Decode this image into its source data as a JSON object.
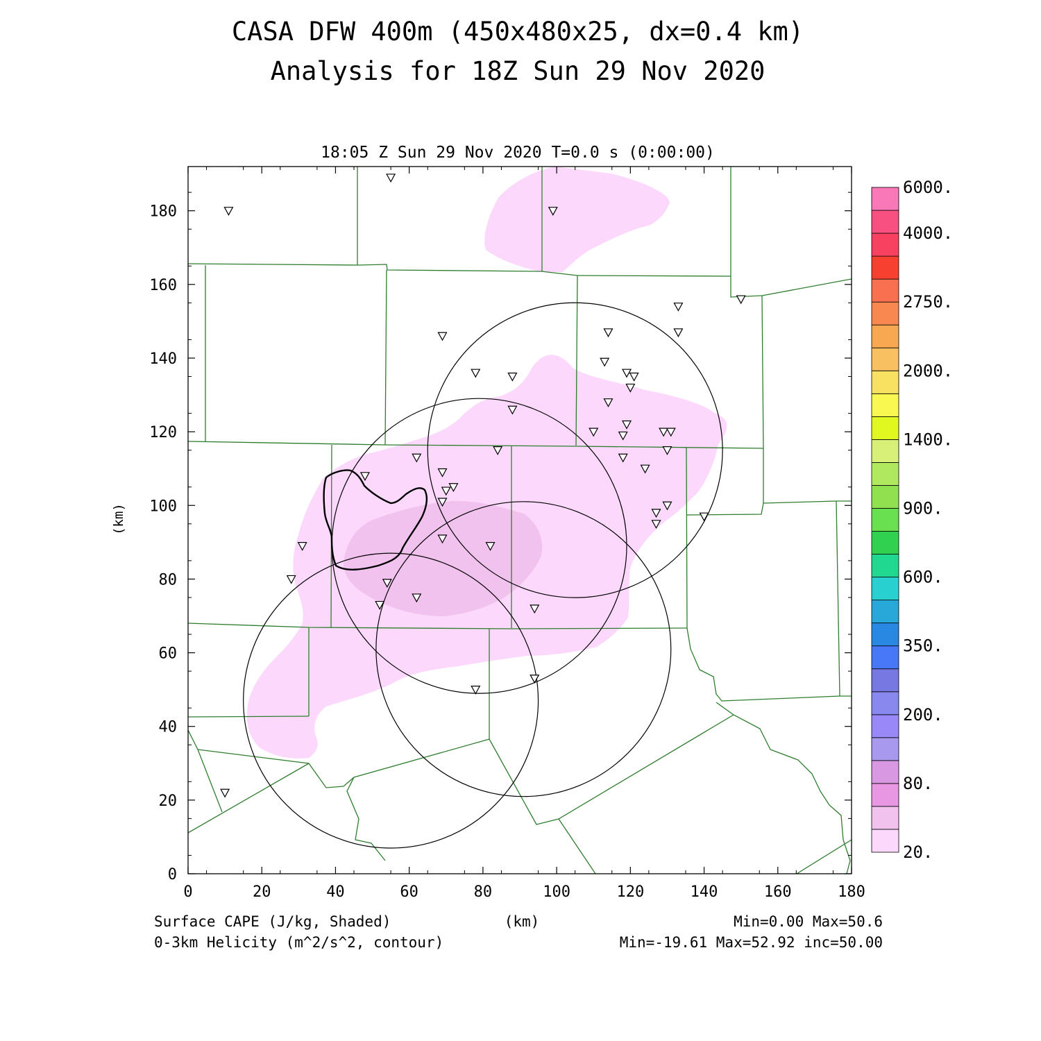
{
  "title": {
    "line1": "CASA DFW 400m (450x480x25, dx=0.4 km)",
    "line2": "Analysis for 18Z Sun 29 Nov 2020"
  },
  "subtitle": "18:05 Z Sun 29 Nov 2020   T=0.0 s (0:00:00)",
  "axes": {
    "x_label": "(km)",
    "y_label": "(km)",
    "x_range": [
      0,
      180
    ],
    "y_range": [
      0,
      192
    ],
    "x_ticks": [
      "0",
      "20",
      "40",
      "60",
      "80",
      "100",
      "120",
      "140",
      "160",
      "180"
    ],
    "y_ticks": [
      "0",
      "20",
      "40",
      "60",
      "80",
      "100",
      "120",
      "140",
      "160",
      "180"
    ]
  },
  "footer": {
    "left1": "Surface CAPE (J/kg, Shaded)",
    "left2": "0-3km Helicity (m^2/s^2, contour)",
    "center": "(km)",
    "right1": "Min=0.00 Max=50.6",
    "right2": "Min=-19.61 Max=52.92 inc=50.00"
  },
  "colorbar": {
    "colors": [
      "#fcd9fc",
      "#f2c2ef",
      "#e898e2",
      "#d898e2",
      "#a898ee",
      "#9888f8",
      "#8888ee",
      "#7878e2",
      "#4878f8",
      "#2888e2",
      "#28a8d8",
      "#28d0d0",
      "#20d890",
      "#30d050",
      "#68e050",
      "#90e050",
      "#b0e860",
      "#d8f078",
      "#e0f820",
      "#f8f850",
      "#f8e060",
      "#f8c060",
      "#f8a850",
      "#f88850",
      "#f87050",
      "#f84030",
      "#f84060",
      "#f85080",
      "#f878b8"
    ],
    "labels": [
      {
        "text": "20.",
        "index": 0
      },
      {
        "text": "80.",
        "index": 3
      },
      {
        "text": "200.",
        "index": 6
      },
      {
        "text": "350.",
        "index": 9
      },
      {
        "text": "600.",
        "index": 12
      },
      {
        "text": "900.",
        "index": 15
      },
      {
        "text": "1400.",
        "index": 18
      },
      {
        "text": "2000.",
        "index": 21
      },
      {
        "text": "2750.",
        "index": 24
      },
      {
        "text": "4000.",
        "index": 27
      },
      {
        "text": "6000.",
        "index": 29
      }
    ]
  },
  "map_colors": {
    "cape_light": "#fcd9fc",
    "cape_medium": "#f1c2ee",
    "county_lines": "#2e7d2e",
    "helicity_contour": "#000000"
  },
  "radar_rings": [
    {
      "center_km": [
        79,
        89
      ],
      "radius_km": 40
    },
    {
      "center_km": [
        105,
        115
      ],
      "radius_km": 40
    },
    {
      "center_km": [
        91,
        61
      ],
      "radius_km": 40
    },
    {
      "center_km": [
        55,
        47
      ],
      "radius_km": 40
    }
  ],
  "stations_km": [
    [
      11,
      180
    ],
    [
      55,
      189
    ],
    [
      99,
      180
    ],
    [
      150,
      156
    ],
    [
      133,
      154
    ],
    [
      133,
      147
    ],
    [
      114,
      147
    ],
    [
      69,
      146
    ],
    [
      113,
      139
    ],
    [
      78,
      136
    ],
    [
      119,
      136
    ],
    [
      121,
      135
    ],
    [
      88,
      135
    ],
    [
      120,
      132
    ],
    [
      114,
      128
    ],
    [
      88,
      126
    ],
    [
      119,
      122
    ],
    [
      110,
      120
    ],
    [
      118,
      119
    ],
    [
      129,
      120
    ],
    [
      131,
      120
    ],
    [
      84,
      115
    ],
    [
      130,
      115
    ],
    [
      62,
      113
    ],
    [
      118,
      113
    ],
    [
      124,
      110
    ],
    [
      69,
      109
    ],
    [
      48,
      108
    ],
    [
      72,
      105
    ],
    [
      70,
      104
    ],
    [
      69,
      101
    ],
    [
      130,
      100
    ],
    [
      127,
      98
    ],
    [
      140,
      97
    ],
    [
      127,
      95
    ],
    [
      31,
      89
    ],
    [
      69,
      91
    ],
    [
      82,
      89
    ],
    [
      28,
      80
    ],
    [
      54,
      79
    ],
    [
      62,
      75
    ],
    [
      52,
      73
    ],
    [
      94,
      72
    ],
    [
      94,
      53
    ],
    [
      78,
      50
    ],
    [
      10,
      22
    ]
  ]
}
